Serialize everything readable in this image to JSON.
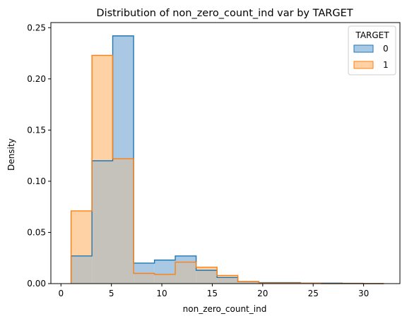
{
  "chart_data": {
    "type": "histogram",
    "title": "Distribution of non_zero_count_ind var by TARGET",
    "xlabel": "non_zero_count_ind",
    "ylabel": "Density",
    "xlim": [
      -1,
      33.6
    ],
    "ylim": [
      0,
      0.255
    ],
    "xticks": [
      0,
      5,
      10,
      15,
      20,
      25,
      30
    ],
    "yticks": [
      0.0,
      0.05,
      0.1,
      0.15,
      0.2,
      0.25
    ],
    "ytick_labels": [
      "0.00",
      "0.05",
      "0.10",
      "0.15",
      "0.20",
      "0.25"
    ],
    "bin_edges": [
      1.0,
      3.07,
      5.13,
      7.2,
      9.27,
      11.33,
      13.4,
      15.47,
      17.53,
      19.6,
      21.67,
      23.73,
      25.8,
      27.87,
      29.93,
      32.0
    ],
    "series": [
      {
        "name": "0",
        "edge_color": "#1f77b4",
        "fill_color": "#a9c8e4",
        "values": [
          0.027,
          0.12,
          0.242,
          0.02,
          0.023,
          0.027,
          0.013,
          0.006,
          0.002,
          0.001,
          0.001,
          0.0005,
          0.0005,
          0.0003,
          0.0
        ]
      },
      {
        "name": "1",
        "edge_color": "#ff7f0e",
        "fill_color": "#ffd2a6",
        "values": [
          0.071,
          0.223,
          0.122,
          0.01,
          0.009,
          0.021,
          0.016,
          0.008,
          0.002,
          0.0005,
          0.0005,
          0.0003,
          0.0,
          0.0,
          0.0
        ]
      }
    ],
    "overlap_color": "#c4c2bb",
    "legend": {
      "title": "TARGET",
      "position": "top-right",
      "entries": [
        "0",
        "1"
      ]
    }
  }
}
